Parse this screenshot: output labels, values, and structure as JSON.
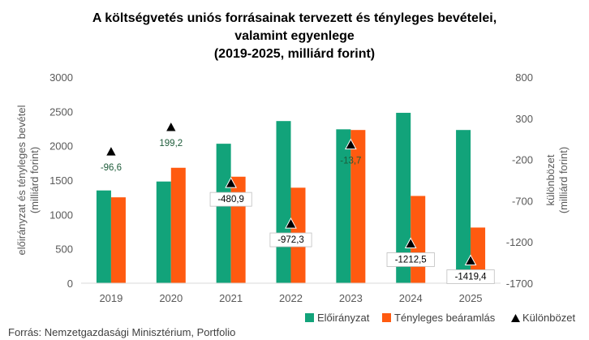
{
  "chart_data": {
    "type": "bar",
    "title_lines": [
      "A költségvetés uniós forrásainak tervezett és tényleges bevételei,",
      "valamint egyenlege",
      "(2019-2025, milliárd forint)"
    ],
    "categories": [
      "2019",
      "2020",
      "2021",
      "2022",
      "2023",
      "2024",
      "2025"
    ],
    "series": [
      {
        "name": "Előirányzat",
        "axis": "left",
        "color": "#12A37A",
        "values": [
          1350,
          1480,
          2030,
          2360,
          2240,
          2480,
          2230
        ]
      },
      {
        "name": "Tényleges beáramlás",
        "axis": "left",
        "color": "#FF5A10",
        "values": [
          1250,
          1680,
          1550,
          1390,
          2230,
          1270,
          810
        ]
      },
      {
        "name": "Különbözet",
        "axis": "right",
        "type": "scatter",
        "marker": "triangle",
        "color": "#000000",
        "values": [
          -96.6,
          199.2,
          -480.9,
          -972.3,
          -13.7,
          -1212.5,
          -1419.4
        ],
        "labels": [
          "-96,6",
          "199,2",
          "-480,9",
          "-972,3",
          "-13,7",
          "-1212,5",
          "-1419,4"
        ]
      }
    ],
    "ylabel_left": [
      "előirányzat és tényleges bevétel",
      "(milliárd forint)"
    ],
    "ylabel_right": [
      "különbözet",
      "(milliárd forint)"
    ],
    "ylim_left": [
      0,
      3000
    ],
    "yticks_left": [
      0,
      500,
      1000,
      1500,
      2000,
      2500,
      3000
    ],
    "yticks_left_labels": [
      "0",
      "500",
      "1000",
      "1500",
      "2000",
      "2500",
      "3000"
    ],
    "ylim_right": [
      -1700,
      800
    ],
    "yticks_right": [
      -1700,
      -1200,
      -700,
      -200,
      300,
      800
    ],
    "yticks_right_labels": [
      "-1700",
      "-1200",
      "-700",
      "-200",
      "300",
      "800"
    ],
    "label_color_positive": "#1E5C3A",
    "legend_position": "bottom-right",
    "grid": false
  },
  "source": "Forrás: Nemzetgazdasági Minisztérium, Portfolio"
}
